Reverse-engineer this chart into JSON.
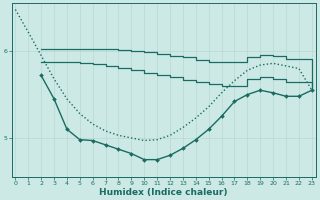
{
  "xlabel": "Humidex (Indice chaleur)",
  "bg_color": "#cce9e5",
  "line_color": "#1a6b62",
  "grid_color": "#b8d8d4",
  "x_ticks": [
    0,
    1,
    2,
    3,
    4,
    5,
    6,
    7,
    8,
    9,
    10,
    11,
    12,
    13,
    14,
    15,
    16,
    17,
    18,
    19,
    20,
    21,
    22,
    23
  ],
  "y_ticks": [
    5,
    6
  ],
  "ylim": [
    4.55,
    6.55
  ],
  "xlim": [
    -0.3,
    23.3
  ],
  "line_dotted_x": [
    0,
    1,
    2,
    3,
    4,
    5,
    6,
    7,
    8,
    9,
    10,
    11,
    12,
    13,
    14,
    15,
    16,
    17,
    18,
    19,
    20,
    21,
    22,
    23
  ],
  "line_dotted_y": [
    6.48,
    6.22,
    5.95,
    5.68,
    5.45,
    5.28,
    5.16,
    5.08,
    5.03,
    5.0,
    4.97,
    4.98,
    5.03,
    5.12,
    5.23,
    5.36,
    5.52,
    5.66,
    5.78,
    5.84,
    5.86,
    5.83,
    5.8,
    5.55
  ],
  "line_upper1_x": [
    2,
    3,
    4,
    5,
    6,
    7,
    8,
    9,
    10,
    11,
    12,
    13,
    14,
    15,
    16,
    17,
    18,
    19,
    20,
    21,
    22,
    23
  ],
  "line_upper1_y": [
    6.02,
    6.02,
    6.02,
    6.02,
    6.02,
    6.02,
    6.01,
    6.0,
    5.99,
    5.97,
    5.95,
    5.93,
    5.9,
    5.88,
    5.87,
    5.87,
    5.93,
    5.96,
    5.94,
    5.91,
    5.91,
    5.6
  ],
  "line_upper2_x": [
    2,
    3,
    4,
    5,
    6,
    7,
    8,
    9,
    10,
    11,
    12,
    13,
    14,
    15,
    16,
    17,
    18,
    19,
    20,
    21,
    22,
    23
  ],
  "line_upper2_y": [
    5.88,
    5.88,
    5.87,
    5.86,
    5.85,
    5.83,
    5.81,
    5.78,
    5.75,
    5.72,
    5.7,
    5.67,
    5.64,
    5.62,
    5.6,
    5.6,
    5.68,
    5.7,
    5.68,
    5.65,
    5.65,
    5.57
  ],
  "line_lower_x": [
    2,
    3,
    4,
    5,
    6,
    7,
    8,
    9,
    10,
    11,
    12,
    13,
    14,
    15,
    16,
    17,
    18,
    19,
    20,
    21,
    22,
    23
  ],
  "line_lower_y": [
    5.72,
    5.45,
    5.1,
    4.98,
    4.97,
    4.92,
    4.87,
    4.82,
    4.75,
    4.75,
    4.8,
    4.88,
    4.98,
    5.1,
    5.25,
    5.42,
    5.5,
    5.55,
    5.52,
    5.48,
    5.48,
    5.55
  ]
}
